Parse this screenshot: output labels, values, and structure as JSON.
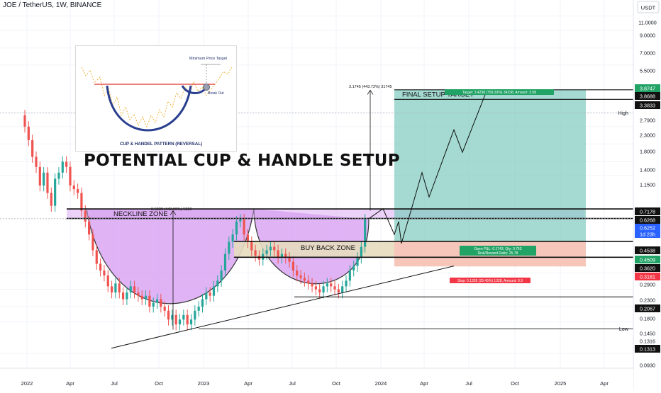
{
  "header": {
    "symbol_line": "JOE / TetherUS, 1W, BINANCE"
  },
  "price_axis": {
    "currency_button": "USDT",
    "ticks": [
      "11.0000",
      "9.0000",
      "7.0000",
      "5.5000",
      "3.8747",
      "3.8688",
      "3.3833",
      "2.7900",
      "2.3000",
      "1.8000",
      "1.4000",
      "1.1500",
      "0.7178",
      "0.6268",
      "0.6252",
      "1d 23h",
      "0.4538",
      "0.4509",
      "0.3620",
      "0.3181",
      "0.2900",
      "0.2300",
      "0.2067",
      "0.1800",
      "0.1450",
      "0.1316",
      "0.1313",
      "0.0930"
    ],
    "high_label": "High",
    "low_label": "Low"
  },
  "time_axis": {
    "labels": [
      "2022",
      "Apr",
      "Jul",
      "Oct",
      "2023",
      "Apr",
      "Jul",
      "Oct",
      "2024",
      "Apr",
      "Jul",
      "Oct",
      "2025",
      "Apr"
    ]
  },
  "annotations": {
    "headline": "POTENTIAL CUP & HANDLE SETUP",
    "neckline_zone": "NECKLINE ZONE",
    "buy_back_zone": "BUY BACK ZONE",
    "final_target": "FINAL SETUP TARGET",
    "measure_left": "0.5839 (443.99%) 5839",
    "measure_right": "3.1745 (443.72%) 31745",
    "target_badge": "Target: 3.4238 (759.33%) 34238, Amount: 3.58",
    "open_pnl_line1": "Open P&L: 0.1743, Qty: 0.753",
    "open_pnl_line2": "Risk/Reward Ratio: 25.78",
    "stop_badge": "Stop: 0.1328 (29.45%) 1328, Amount: 0.9"
  },
  "inset": {
    "min_price_target": "Minimum Price Target",
    "break_out": "Break Out",
    "caption": "CUP & HANDEL PATTERN (REVERSAL)"
  },
  "colors": {
    "up": "#26a69a",
    "down": "#ef5350",
    "cup_fill": "#d9a6f2",
    "target_fill": "#7ecbbd",
    "stop_fill": "#f2b8a8",
    "buy_zone_fill": "#e6dcbf",
    "badge_green": "#22a366",
    "badge_red": "#f23645",
    "badge_blue": "#2962ff"
  },
  "chart_data": {
    "type": "candlestick",
    "title": "JOE / TetherUS, 1W, BINANCE",
    "y_scale": "log",
    "ylim": [
      0.08,
      13
    ],
    "x_ticks": [
      "2022",
      "Apr",
      "Jul",
      "Oct",
      "2023",
      "Apr",
      "Jul",
      "Oct",
      "2024",
      "Apr",
      "Jul",
      "Oct",
      "2025",
      "Apr"
    ],
    "weekly_closes_approx": [
      2.3,
      1.9,
      1.5,
      1.3,
      1.0,
      1.2,
      0.9,
      0.75,
      1.1,
      1.2,
      1.4,
      1.3,
      1.0,
      0.95,
      0.9,
      0.7,
      0.6,
      0.5,
      0.4,
      0.33,
      0.3,
      0.28,
      0.24,
      0.22,
      0.25,
      0.22,
      0.2,
      0.22,
      0.24,
      0.22,
      0.21,
      0.2,
      0.21,
      0.18,
      0.19,
      0.2,
      0.18,
      0.17,
      0.15,
      0.16,
      0.14,
      0.15,
      0.16,
      0.14,
      0.15,
      0.17,
      0.18,
      0.2,
      0.22,
      0.21,
      0.24,
      0.26,
      0.3,
      0.38,
      0.45,
      0.5,
      0.6,
      0.62,
      0.5,
      0.45,
      0.4,
      0.37,
      0.35,
      0.38,
      0.4,
      0.42,
      0.4,
      0.36,
      0.38,
      0.36,
      0.34,
      0.3,
      0.28,
      0.27,
      0.26,
      0.25,
      0.24,
      0.23,
      0.22,
      0.24,
      0.25,
      0.24,
      0.23,
      0.22,
      0.24,
      0.26,
      0.3,
      0.32,
      0.36,
      0.42,
      0.62
    ],
    "levels": {
      "neckline_top": 0.7178,
      "neckline_bottom": 0.6268,
      "current": 0.6252,
      "entry": 0.4538,
      "buy_zone_top": 0.4509,
      "buy_zone_bottom": 0.362,
      "stop": 0.3181,
      "target": 3.8747,
      "target_2": 3.8688,
      "final_target": 3.3833,
      "high": 2.79,
      "support": 0.2067,
      "low": 0.1316,
      "low_2": 0.1313
    },
    "projected_path": [
      0.6252,
      0.72,
      0.5,
      0.6,
      0.44,
      1.2,
      0.85,
      2.2,
      1.6,
      3.8
    ],
    "trendline": [
      [
        0.1,
        0.2
      ],
      [
        0.12,
        0.215
      ]
    ]
  }
}
